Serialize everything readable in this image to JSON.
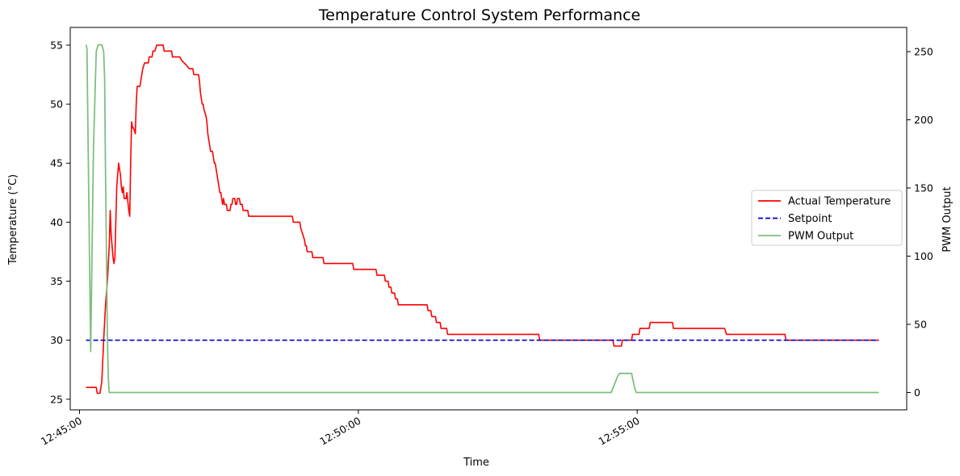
{
  "chart_data": {
    "type": "line",
    "title": "Temperature Control System Performance",
    "xlabel": "Time",
    "ylabel": "Temperature (°C)",
    "y2label": "PWM Output",
    "x_ticks": [
      "12:45:00",
      "12:50:00",
      "12:55:00"
    ],
    "x_tick_seconds": [
      0,
      300,
      600
    ],
    "xlim_seconds": [
      -10,
      890
    ],
    "ylim": [
      24.1,
      56.5
    ],
    "y_ticks": [
      25,
      30,
      35,
      40,
      45,
      50,
      55
    ],
    "y2lim": [
      -12.75,
      267.75
    ],
    "y2_ticks": [
      0,
      50,
      100,
      150,
      200,
      250
    ],
    "grid": false,
    "legend_position": "center-right",
    "series": [
      {
        "name": "Actual Temperature",
        "axis": "left",
        "color": "#ff0000",
        "style": "solid",
        "points": [
          [
            7,
            26
          ],
          [
            18,
            26
          ],
          [
            19,
            25.5
          ],
          [
            22,
            25.5
          ],
          [
            24,
            26.5
          ],
          [
            26,
            30
          ],
          [
            28,
            33
          ],
          [
            30,
            35
          ],
          [
            32,
            38
          ],
          [
            33,
            41
          ],
          [
            34,
            39
          ],
          [
            35,
            38
          ],
          [
            36,
            37
          ],
          [
            37,
            36.5
          ],
          [
            38,
            37
          ],
          [
            40,
            43
          ],
          [
            42,
            45
          ],
          [
            44,
            44
          ],
          [
            45,
            43
          ],
          [
            46,
            42.5
          ],
          [
            47,
            43
          ],
          [
            48,
            42
          ],
          [
            50,
            42
          ],
          [
            51,
            42.5
          ],
          [
            53,
            41
          ],
          [
            54,
            40.5
          ],
          [
            55,
            45
          ],
          [
            56,
            48.5
          ],
          [
            57,
            48
          ],
          [
            58,
            48
          ],
          [
            60,
            47.5
          ],
          [
            61,
            50
          ],
          [
            62,
            51.5
          ],
          [
            65,
            51.5
          ],
          [
            66,
            52
          ],
          [
            67,
            52.5
          ],
          [
            68,
            53
          ],
          [
            70,
            53.5
          ],
          [
            72,
            53.5
          ],
          [
            74,
            53.5
          ],
          [
            75,
            54
          ],
          [
            77,
            54
          ],
          [
            78,
            54
          ],
          [
            79,
            54.5
          ],
          [
            81,
            54.5
          ],
          [
            83,
            55
          ],
          [
            90,
            55
          ],
          [
            91,
            54.5
          ],
          [
            99,
            54.5
          ],
          [
            100,
            54
          ],
          [
            108,
            54
          ],
          [
            110,
            53.7
          ],
          [
            115,
            53.3
          ],
          [
            118,
            53
          ],
          [
            122,
            53
          ],
          [
            123,
            52.5
          ],
          [
            128,
            52.5
          ],
          [
            129,
            52
          ],
          [
            130,
            51
          ],
          [
            131,
            50.5
          ],
          [
            132,
            50
          ],
          [
            133,
            50
          ],
          [
            134,
            49.5
          ],
          [
            136,
            49
          ],
          [
            137,
            48.5
          ],
          [
            138,
            47.5
          ],
          [
            139,
            47
          ],
          [
            140,
            46.5
          ],
          [
            141,
            46
          ],
          [
            143,
            46
          ],
          [
            144,
            45.5
          ],
          [
            145,
            45
          ],
          [
            146,
            45
          ],
          [
            147,
            44.5
          ],
          [
            148,
            44
          ],
          [
            149,
            43.5
          ],
          [
            150,
            43
          ],
          [
            151,
            42.5
          ],
          [
            152,
            42.5
          ],
          [
            153,
            42
          ],
          [
            154,
            41.5
          ],
          [
            155,
            42
          ],
          [
            156,
            41.5
          ],
          [
            158,
            41.5
          ],
          [
            159,
            41
          ],
          [
            162,
            41
          ],
          [
            163,
            41.5
          ],
          [
            164,
            41.5
          ],
          [
            165,
            42
          ],
          [
            167,
            42
          ],
          [
            168,
            41.5
          ],
          [
            169,
            41.5
          ],
          [
            170,
            42
          ],
          [
            172,
            42
          ],
          [
            173,
            41.5
          ],
          [
            175,
            41.5
          ],
          [
            176,
            41
          ],
          [
            181,
            41
          ],
          [
            182,
            40.5
          ],
          [
            229,
            40.5
          ],
          [
            230,
            40
          ],
          [
            237,
            40
          ],
          [
            238,
            39.5
          ],
          [
            240,
            39
          ],
          [
            242,
            38.5
          ],
          [
            243,
            38
          ],
          [
            244,
            38
          ],
          [
            245,
            37.5
          ],
          [
            250,
            37.5
          ],
          [
            251,
            37
          ],
          [
            262,
            37
          ],
          [
            263,
            36.5
          ],
          [
            294,
            36.5
          ],
          [
            295,
            36
          ],
          [
            319,
            36
          ],
          [
            320,
            35.5
          ],
          [
            328,
            35.5
          ],
          [
            329,
            35
          ],
          [
            332,
            35
          ],
          [
            333,
            34.5
          ],
          [
            335,
            34.5
          ],
          [
            336,
            34
          ],
          [
            339,
            34
          ],
          [
            340,
            33.5
          ],
          [
            342,
            33.5
          ],
          [
            343,
            33
          ],
          [
            374,
            33
          ],
          [
            375,
            32.5
          ],
          [
            378,
            32.5
          ],
          [
            379,
            32
          ],
          [
            383,
            32
          ],
          [
            384,
            31.5
          ],
          [
            388,
            31.5
          ],
          [
            389,
            31
          ],
          [
            395,
            31
          ],
          [
            396,
            30.5
          ],
          [
            494,
            30.5
          ],
          [
            495,
            30
          ],
          [
            574,
            30
          ],
          [
            575,
            29.5
          ],
          [
            583,
            29.5
          ],
          [
            584,
            30
          ],
          [
            594,
            30
          ],
          [
            595,
            30.5
          ],
          [
            602,
            30.5
          ],
          [
            603,
            31
          ],
          [
            613,
            31
          ],
          [
            614,
            31.5
          ],
          [
            638,
            31.5
          ],
          [
            639,
            31
          ],
          [
            694,
            31
          ],
          [
            695,
            30.8
          ],
          [
            696,
            30.5
          ],
          [
            759,
            30.5
          ],
          [
            760,
            30
          ],
          [
            860,
            30
          ]
        ]
      },
      {
        "name": "Setpoint",
        "axis": "left",
        "color": "#0000cc",
        "style": "dashed",
        "points": [
          [
            7,
            30
          ],
          [
            860,
            30
          ]
        ]
      },
      {
        "name": "PWM Output",
        "axis": "right",
        "color": "#7fbf7f",
        "style": "solid",
        "points": [
          [
            7,
            255
          ],
          [
            8,
            252
          ],
          [
            12,
            30
          ],
          [
            15,
            180
          ],
          [
            18,
            250
          ],
          [
            20,
            255
          ],
          [
            24,
            255
          ],
          [
            26,
            250
          ],
          [
            27,
            230
          ],
          [
            28,
            160
          ],
          [
            29,
            100
          ],
          [
            30,
            40
          ],
          [
            31,
            10
          ],
          [
            32,
            0
          ],
          [
            572,
            0
          ],
          [
            575,
            5
          ],
          [
            579,
            12
          ],
          [
            581,
            14
          ],
          [
            594,
            14
          ],
          [
            597,
            4
          ],
          [
            599,
            0
          ],
          [
            860,
            0
          ]
        ]
      }
    ]
  }
}
